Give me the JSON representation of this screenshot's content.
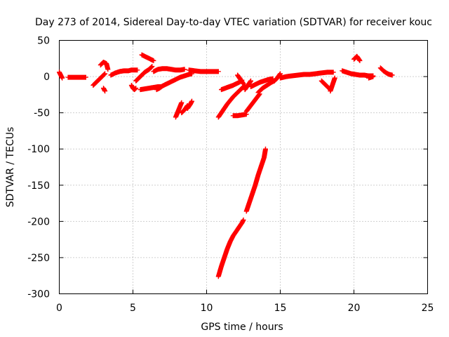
{
  "chart_data": {
    "type": "scatter",
    "title": "Day 273 of 2014, Sidereal Day-to-day VTEC variation (SDTVAR) for receiver kouc",
    "xlabel": "GPS time / hours",
    "ylabel": "SDTVAR / TECUs",
    "xlim": [
      0,
      25
    ],
    "ylim": [
      -300,
      50
    ],
    "x_ticks": [
      0,
      5,
      10,
      15,
      20,
      25
    ],
    "y_ticks": [
      50,
      0,
      -50,
      -100,
      -150,
      -200,
      -250,
      -300
    ],
    "x_tick_labels": [
      "0",
      "5",
      "10",
      "15",
      "20",
      "25"
    ],
    "y_tick_labels": [
      "50",
      "0",
      "-50",
      "-100",
      "-150",
      "-200",
      "-250",
      "-300"
    ],
    "grid": true,
    "legend": "none",
    "marker": "plus",
    "color": "#ff0000",
    "segments": [
      {
        "x": [
          0.0,
          0.1,
          0.2
        ],
        "y": [
          6,
          2,
          -2
        ]
      },
      {
        "x": [
          0.6,
          0.9,
          1.2,
          1.5,
          1.8
        ],
        "y": [
          -1,
          -1,
          -1,
          -1,
          -1
        ]
      },
      {
        "x": [
          2.3,
          2.6,
          2.9,
          3.1
        ],
        "y": [
          -12,
          -6,
          0,
          4
        ]
      },
      {
        "x": [
          2.8,
          3.0,
          3.2,
          3.3
        ],
        "y": [
          16,
          20,
          18,
          10
        ]
      },
      {
        "x": [
          3.0,
          3.1
        ],
        "y": [
          -16,
          -20
        ]
      },
      {
        "x": [
          3.5,
          3.8,
          4.1,
          4.4,
          4.7,
          4.9,
          5.1,
          5.3
        ],
        "y": [
          2,
          5,
          7,
          8,
          8,
          9,
          9,
          9
        ]
      },
      {
        "x": [
          4.9,
          5.0,
          5.1,
          5.2
        ],
        "y": [
          -12,
          -16,
          -18,
          -16
        ]
      },
      {
        "x": [
          5.2,
          5.5,
          5.8,
          6.1,
          6.3
        ],
        "y": [
          -6,
          0,
          6,
          10,
          14
        ]
      },
      {
        "x": [
          5.6,
          5.8,
          6.0,
          6.2,
          6.4
        ],
        "y": [
          30,
          28,
          26,
          24,
          22
        ]
      },
      {
        "x": [
          5.5,
          5.8,
          6.1,
          6.4,
          6.7,
          6.9
        ],
        "y": [
          -18,
          -17,
          -16,
          -15,
          -14,
          -14
        ]
      },
      {
        "x": [
          6.4,
          6.7,
          7.0,
          7.3,
          7.6,
          7.9,
          8.2,
          8.5
        ],
        "y": [
          7,
          10,
          11,
          11,
          10,
          9,
          9,
          10
        ]
      },
      {
        "x": [
          6.6,
          6.8,
          7.0,
          7.3,
          7.6,
          7.9,
          8.2,
          8.5,
          8.8,
          9.0
        ],
        "y": [
          -18,
          -16,
          -13,
          -10,
          -7,
          -4,
          -1,
          1,
          3,
          4
        ]
      },
      {
        "x": [
          7.9,
          8.1,
          8.3
        ],
        "y": [
          -56,
          -46,
          -36
        ]
      },
      {
        "x": [
          8.3,
          8.5,
          8.7
        ],
        "y": [
          -50,
          -46,
          -40
        ]
      },
      {
        "x": [
          8.7,
          8.9,
          9.0
        ],
        "y": [
          -44,
          -38,
          -34
        ]
      },
      {
        "x": [
          8.8,
          9.2,
          9.6,
          10.0,
          10.4,
          10.8
        ],
        "y": [
          9,
          8,
          7,
          7,
          7,
          7
        ]
      },
      {
        "x": [
          10.8,
          11.0,
          11.2,
          11.4,
          11.6,
          11.8,
          12.0,
          12.2,
          12.4,
          12.5
        ],
        "y": [
          -276,
          -262,
          -250,
          -238,
          -228,
          -220,
          -214,
          -208,
          -202,
          -198
        ]
      },
      {
        "x": [
          12.7,
          12.9,
          13.1,
          13.3,
          13.5,
          13.7,
          13.9,
          14.0
        ],
        "y": [
          -186,
          -174,
          -162,
          -150,
          -136,
          -124,
          -112,
          -100
        ]
      },
      {
        "x": [
          10.8,
          11.0,
          11.2,
          11.4,
          11.6,
          11.8,
          12.0,
          12.2,
          12.4,
          12.6
        ],
        "y": [
          -56,
          -50,
          -44,
          -38,
          -33,
          -28,
          -24,
          -20,
          -16,
          -12
        ]
      },
      {
        "x": [
          11.0,
          11.4,
          11.8,
          12.2,
          12.4
        ],
        "y": [
          -18,
          -15,
          -12,
          -8,
          -5
        ]
      },
      {
        "x": [
          11.8,
          12.1,
          12.4,
          12.7
        ],
        "y": [
          -54,
          -54,
          -53,
          -52
        ]
      },
      {
        "x": [
          12.7,
          13.0,
          13.3,
          13.6
        ],
        "y": [
          -48,
          -40,
          -32,
          -24
        ]
      },
      {
        "x": [
          12.1,
          12.3,
          12.5
        ],
        "y": [
          2,
          -4,
          -10
        ]
      },
      {
        "x": [
          12.6,
          12.8,
          13.0
        ],
        "y": [
          -18,
          -12,
          -6
        ]
      },
      {
        "x": [
          13.0,
          13.3,
          13.6,
          13.9,
          14.2,
          14.5
        ],
        "y": [
          -14,
          -11,
          -8,
          -6,
          -4,
          -3
        ]
      },
      {
        "x": [
          13.5,
          13.8,
          14.1,
          14.4,
          14.6
        ],
        "y": [
          -22,
          -16,
          -12,
          -8,
          -6
        ]
      },
      {
        "x": [
          14.6,
          14.8,
          15.0
        ],
        "y": [
          -6,
          -2,
          4
        ]
      },
      {
        "x": [
          15.0,
          15.4,
          15.8,
          16.2,
          16.6,
          17.0,
          17.4,
          17.8,
          18.2,
          18.6
        ],
        "y": [
          -2,
          0,
          1,
          2,
          3,
          3,
          4,
          5,
          6,
          6
        ]
      },
      {
        "x": [
          17.8,
          18.0,
          18.2,
          18.4
        ],
        "y": [
          -6,
          -10,
          -14,
          -18
        ]
      },
      {
        "x": [
          18.4,
          18.5,
          18.6,
          18.7
        ],
        "y": [
          -20,
          -14,
          -8,
          -2
        ]
      },
      {
        "x": [
          19.2,
          19.5,
          19.8,
          20.1,
          20.4,
          20.7,
          21.0,
          21.3
        ],
        "y": [
          8,
          6,
          4,
          3,
          2,
          2,
          1,
          1
        ]
      },
      {
        "x": [
          20.0,
          20.2,
          20.4
        ],
        "y": [
          24,
          28,
          22
        ]
      },
      {
        "x": [
          21.0,
          21.3
        ],
        "y": [
          -2,
          0
        ]
      },
      {
        "x": [
          21.8,
          22.0,
          22.2,
          22.4,
          22.6
        ],
        "y": [
          12,
          8,
          5,
          3,
          2
        ]
      }
    ]
  }
}
